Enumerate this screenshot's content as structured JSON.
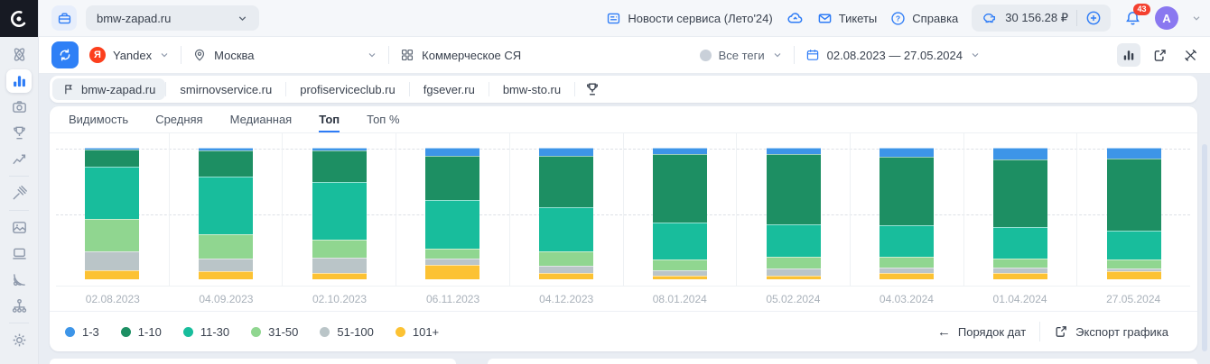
{
  "colors": {
    "accent": "#2e7cf6",
    "badge_red": "#f4402f",
    "yandex_red": "#fc3f1d",
    "avatar_purple": "#8a78f0",
    "sidebar_icon_gray": "#8e99ab"
  },
  "icons": {
    "arrow_left": "←"
  },
  "topbar": {
    "project": "bmw-zapad.ru",
    "news_label": "Новости сервиса (Лето'24)",
    "tickets_label": "Тикеты",
    "help_label": "Справка",
    "balance": "30 156.28 ₽",
    "notifications_badge": "43",
    "avatar_initial": "A"
  },
  "filterbar": {
    "search_engine": "Yandex",
    "engine_logo_letter": "Я",
    "region": "Москва",
    "semantic_group": "Коммерческое СЯ",
    "tags_label": "Все теги",
    "date_range": "02.08.2023 — 27.05.2024"
  },
  "projects": {
    "active": "bmw-zapad.ru",
    "tabs": [
      "bmw-zapad.ru",
      "smirnovservice.ru",
      "profiserviceclub.ru",
      "fgsever.ru",
      "bmw-sto.ru"
    ]
  },
  "metric_tabs": {
    "active": "Топ",
    "items": [
      "Видимость",
      "Средняя",
      "Медианная",
      "Топ",
      "Топ %"
    ]
  },
  "chart_data": {
    "type": "bar",
    "stacked": true,
    "unit": "percent of tracked keywords (stacked to 100%)",
    "title": "Топ — распределение позиций по датам",
    "categories": [
      "02.08.2023",
      "04.09.2023",
      "02.10.2023",
      "06.11.2023",
      "04.12.2023",
      "08.01.2024",
      "05.02.2024",
      "04.03.2024",
      "01.04.2024",
      "27.05.2024"
    ],
    "series": [
      {
        "name": "1-3",
        "color": "#3d95e8",
        "values": [
          1,
          2,
          2,
          6,
          6,
          5,
          5,
          7,
          9,
          8
        ]
      },
      {
        "name": "1-10",
        "color": "#1d8f63",
        "values": [
          13,
          20,
          24,
          34,
          39,
          52,
          53,
          52,
          51,
          55
        ]
      },
      {
        "name": "11-30",
        "color": "#18bd9c",
        "values": [
          40,
          44,
          44,
          37,
          34,
          28,
          25,
          24,
          24,
          22
        ]
      },
      {
        "name": "31-50",
        "color": "#90d690",
        "values": [
          25,
          18,
          14,
          7,
          11,
          8,
          9,
          8,
          7,
          7
        ]
      },
      {
        "name": "51-100",
        "color": "#bac5c8",
        "values": [
          14,
          10,
          11,
          5,
          5,
          4,
          5,
          4,
          4,
          2
        ]
      },
      {
        "name": "101+",
        "color": "#fcc233",
        "values": [
          7,
          6,
          5,
          11,
          5,
          3,
          3,
          5,
          5,
          6
        ]
      }
    ],
    "ylim": [
      0,
      100
    ],
    "grid": "dashed horizontal at 50% and 100%",
    "legend_position": "bottom-left"
  },
  "footer": {
    "date_order_label": "Порядок дат",
    "export_label": "Экспорт графика"
  },
  "sidebar": {
    "items": [
      {
        "icon": "atom-icon",
        "active": false
      },
      {
        "icon": "bar-chart-icon",
        "active": true
      },
      {
        "icon": "camera-icon",
        "active": false
      },
      {
        "icon": "trophy-icon",
        "active": false
      },
      {
        "icon": "line-chart-icon",
        "active": false
      },
      {
        "icon": "divider"
      },
      {
        "icon": "gavel-icon",
        "active": false
      },
      {
        "icon": "divider"
      },
      {
        "icon": "image-icon",
        "active": false
      },
      {
        "icon": "laptop-icon",
        "active": false
      },
      {
        "icon": "satellite-icon",
        "active": false
      },
      {
        "icon": "sitemap-icon",
        "active": false
      },
      {
        "icon": "divider"
      },
      {
        "icon": "gear-icon",
        "active": false
      }
    ]
  }
}
